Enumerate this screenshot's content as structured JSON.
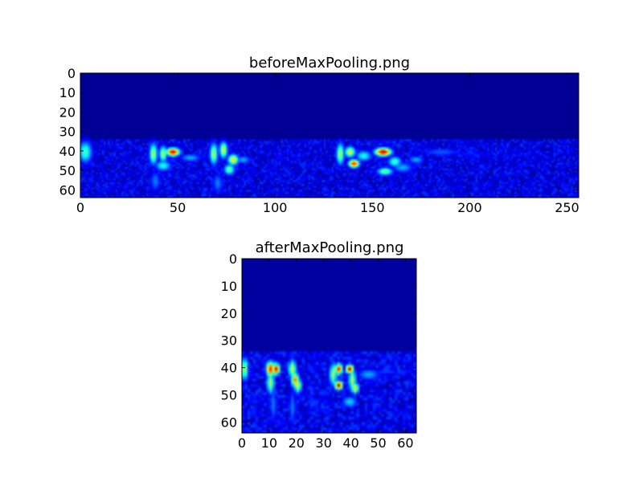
{
  "chart_data": [
    {
      "type": "heatmap",
      "title": "beforeMaxPooling.png",
      "xlabel": "",
      "ylabel": "",
      "xlim": [
        0,
        256
      ],
      "ylim": [
        64,
        0
      ],
      "xticks": [
        0,
        50,
        100,
        150,
        200,
        250
      ],
      "yticks": [
        0,
        10,
        20,
        30,
        40,
        50,
        60
      ],
      "colormap": "jet",
      "grid": false,
      "shape": [
        64,
        256
      ],
      "background_level": 0.02,
      "noise_band_rows": [
        34,
        64
      ],
      "features": [
        {
          "x": 2,
          "y": 40,
          "sx": 2.5,
          "sy": 4,
          "v": 0.45
        },
        {
          "x": 37,
          "y": 41,
          "sx": 1.5,
          "sy": 4,
          "v": 0.55
        },
        {
          "x": 42,
          "y": 41,
          "sx": 1.5,
          "sy": 3,
          "v": 0.55
        },
        {
          "x": 47,
          "y": 40,
          "sx": 2.5,
          "sy": 1.5,
          "v": 0.92
        },
        {
          "x": 42,
          "y": 47,
          "sx": 3,
          "sy": 2,
          "v": 0.4
        },
        {
          "x": 38,
          "y": 55,
          "sx": 2,
          "sy": 4,
          "v": 0.25
        },
        {
          "x": 56,
          "y": 43,
          "sx": 4,
          "sy": 1.5,
          "v": 0.3
        },
        {
          "x": 68,
          "y": 41,
          "sx": 1.5,
          "sy": 4,
          "v": 0.55
        },
        {
          "x": 73,
          "y": 39,
          "sx": 1.5,
          "sy": 3,
          "v": 0.6
        },
        {
          "x": 78,
          "y": 44,
          "sx": 2,
          "sy": 2,
          "v": 0.65
        },
        {
          "x": 76,
          "y": 49,
          "sx": 2,
          "sy": 2,
          "v": 0.5
        },
        {
          "x": 70,
          "y": 56,
          "sx": 2,
          "sy": 4,
          "v": 0.25
        },
        {
          "x": 83,
          "y": 44,
          "sx": 3,
          "sy": 1.5,
          "v": 0.3
        },
        {
          "x": 133,
          "y": 41,
          "sx": 1.5,
          "sy": 4,
          "v": 0.55
        },
        {
          "x": 138,
          "y": 40,
          "sx": 2,
          "sy": 2,
          "v": 0.6
        },
        {
          "x": 140,
          "y": 46,
          "sx": 2,
          "sy": 1.5,
          "v": 0.85
        },
        {
          "x": 145,
          "y": 42,
          "sx": 3,
          "sy": 2,
          "v": 0.4
        },
        {
          "x": 155,
          "y": 40,
          "sx": 3,
          "sy": 1.5,
          "v": 0.95
        },
        {
          "x": 161,
          "y": 45,
          "sx": 2.5,
          "sy": 2,
          "v": 0.45
        },
        {
          "x": 156,
          "y": 50,
          "sx": 3,
          "sy": 1.5,
          "v": 0.5
        },
        {
          "x": 165,
          "y": 48,
          "sx": 4,
          "sy": 2,
          "v": 0.3
        },
        {
          "x": 172,
          "y": 44,
          "sx": 3,
          "sy": 1.5,
          "v": 0.3
        },
        {
          "x": 185,
          "y": 40,
          "sx": 8,
          "sy": 1.5,
          "v": 0.22
        },
        {
          "x": 200,
          "y": 41,
          "sx": 10,
          "sy": 1.5,
          "v": 0.15
        },
        {
          "x": 228,
          "y": 41,
          "sx": 10,
          "sy": 1.5,
          "v": 0.12
        }
      ]
    },
    {
      "type": "heatmap",
      "title": "afterMaxPooling.png",
      "xlabel": "",
      "ylabel": "",
      "xlim": [
        0,
        64
      ],
      "ylim": [
        64,
        0
      ],
      "xticks": [
        0,
        10,
        20,
        30,
        40,
        50,
        60
      ],
      "yticks": [
        0,
        10,
        20,
        30,
        40,
        50,
        60
      ],
      "colormap": "jet",
      "grid": false,
      "shape": [
        64,
        64
      ],
      "background_level": 0.03,
      "noise_band_rows": [
        34,
        64
      ],
      "features": [
        {
          "x": 0.5,
          "y": 40,
          "sx": 1,
          "sy": 3,
          "v": 0.55
        },
        {
          "x": 10,
          "y": 40,
          "sx": 1.2,
          "sy": 2,
          "v": 0.85
        },
        {
          "x": 12,
          "y": 40,
          "sx": 1,
          "sy": 1.5,
          "v": 0.9
        },
        {
          "x": 10,
          "y": 45,
          "sx": 1,
          "sy": 3,
          "v": 0.55
        },
        {
          "x": 11,
          "y": 53,
          "sx": 1,
          "sy": 5,
          "v": 0.25
        },
        {
          "x": 18,
          "y": 40,
          "sx": 1,
          "sy": 2.5,
          "v": 0.6
        },
        {
          "x": 19,
          "y": 44,
          "sx": 1,
          "sy": 2,
          "v": 0.75
        },
        {
          "x": 20,
          "y": 46,
          "sx": 1,
          "sy": 2,
          "v": 0.6
        },
        {
          "x": 18,
          "y": 54,
          "sx": 1,
          "sy": 5,
          "v": 0.25
        },
        {
          "x": 33,
          "y": 42,
          "sx": 1,
          "sy": 3,
          "v": 0.55
        },
        {
          "x": 35,
          "y": 40,
          "sx": 1,
          "sy": 1.5,
          "v": 0.85
        },
        {
          "x": 35,
          "y": 46,
          "sx": 1,
          "sy": 1.2,
          "v": 0.95
        },
        {
          "x": 39,
          "y": 40,
          "sx": 1,
          "sy": 1.2,
          "v": 0.95
        },
        {
          "x": 40,
          "y": 44,
          "sx": 1,
          "sy": 3,
          "v": 0.55
        },
        {
          "x": 41,
          "y": 47,
          "sx": 1,
          "sy": 1.5,
          "v": 0.65
        },
        {
          "x": 39,
          "y": 52,
          "sx": 2,
          "sy": 1.5,
          "v": 0.35
        },
        {
          "x": 46,
          "y": 42,
          "sx": 3,
          "sy": 1.5,
          "v": 0.3
        },
        {
          "x": 52,
          "y": 41,
          "sx": 4,
          "sy": 1.2,
          "v": 0.18
        }
      ]
    }
  ]
}
